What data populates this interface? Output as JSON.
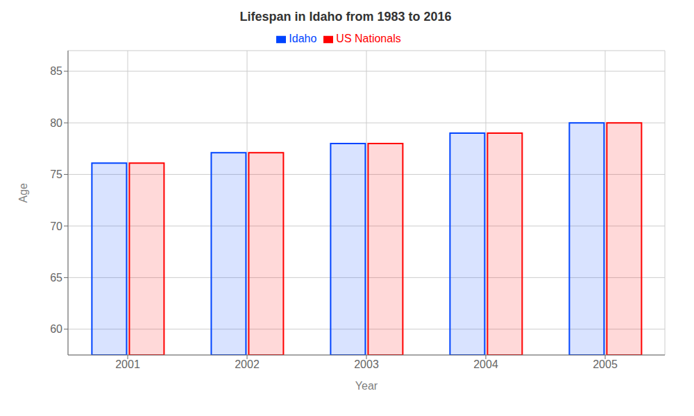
{
  "chart_data": {
    "type": "bar",
    "title": "Lifespan in Idaho from 1983 to 2016",
    "x_label": "Year",
    "y_label": "Age",
    "categories": [
      "2001",
      "2002",
      "2003",
      "2004",
      "2005"
    ],
    "series": [
      {
        "name": "Idaho",
        "color": "#0044ff",
        "values": [
          76.1,
          77.1,
          78.0,
          79.0,
          80.0
        ]
      },
      {
        "name": "US Nationals",
        "color": "#ff0000",
        "values": [
          76.1,
          77.1,
          78.0,
          79.0,
          80.0
        ]
      }
    ],
    "ylim": [
      57.5,
      87
    ],
    "yticks": [
      60,
      65,
      70,
      75,
      80,
      85
    ],
    "grid": true,
    "legend": "top"
  }
}
